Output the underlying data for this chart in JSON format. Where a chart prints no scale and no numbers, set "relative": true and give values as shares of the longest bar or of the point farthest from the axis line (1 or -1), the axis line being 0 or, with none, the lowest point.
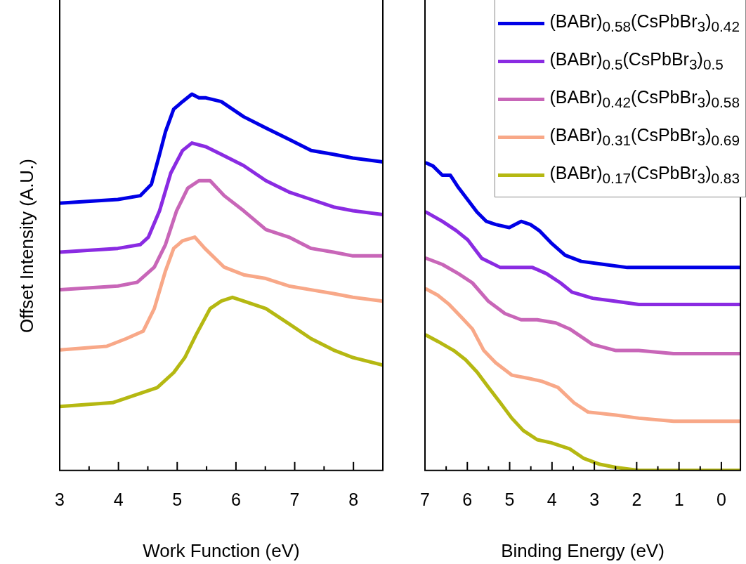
{
  "chart_data": [
    {
      "type": "line",
      "ylabel": "Offset Intensity (A.U.)",
      "xlabel": "Work Function (eV)",
      "relative": true,
      "tick_labels": "x",
      "xlim": [
        3,
        8.5
      ],
      "xticks": [
        3,
        {
          "value": 3.5,
          "label": null
        },
        4,
        {
          "value": 4.5,
          "label": null
        },
        5,
        {
          "value": 5.5,
          "label": null
        },
        6,
        {
          "value": 6.5,
          "label": null
        },
        7,
        {
          "value": 7.5,
          "label": null
        },
        8
      ],
      "line_style": "solid",
      "marker": "none",
      "series": [
        {
          "color": "#0000e6",
          "x": [
            3,
            3.99,
            4.37,
            4.56,
            4.7,
            4.8,
            4.94,
            5.09,
            5.25,
            5.37,
            5.49,
            5.75,
            6.13,
            6.51,
            6.9,
            7.28,
            7.66,
            7.99,
            8.5
          ],
          "values": [
            0.71,
            0.72,
            0.73,
            0.76,
            0.84,
            0.9,
            0.96,
            0.98,
            1.0,
            0.99,
            0.99,
            0.98,
            0.94,
            0.91,
            0.88,
            0.85,
            0.84,
            0.83,
            0.82
          ]
        },
        {
          "color": "#8a2be2",
          "x": [
            3,
            3.99,
            4.37,
            4.51,
            4.7,
            4.89,
            5.09,
            5.25,
            5.49,
            5.75,
            6.13,
            6.51,
            6.9,
            7.28,
            7.66,
            7.99,
            8.5
          ],
          "values": [
            0.58,
            0.59,
            0.6,
            0.62,
            0.69,
            0.79,
            0.85,
            0.87,
            0.86,
            0.84,
            0.81,
            0.77,
            0.74,
            0.72,
            0.7,
            0.69,
            0.68
          ]
        },
        {
          "color": "#c866b8",
          "x": [
            3,
            3.99,
            4.32,
            4.61,
            4.8,
            4.99,
            5.18,
            5.37,
            5.56,
            5.8,
            6.13,
            6.51,
            6.9,
            7.28,
            7.66,
            7.99,
            8.5
          ],
          "values": [
            0.48,
            0.49,
            0.5,
            0.54,
            0.6,
            0.69,
            0.75,
            0.77,
            0.77,
            0.73,
            0.69,
            0.64,
            0.62,
            0.59,
            0.58,
            0.57,
            0.57
          ]
        },
        {
          "color": "#f8a888",
          "x": [
            3,
            3.8,
            4.13,
            4.42,
            4.61,
            4.8,
            4.94,
            5.09,
            5.3,
            5.47,
            5.8,
            6.13,
            6.51,
            6.9,
            7.28,
            7.66,
            7.99,
            8.5
          ],
          "values": [
            0.32,
            0.33,
            0.35,
            0.37,
            0.43,
            0.53,
            0.59,
            0.61,
            0.62,
            0.59,
            0.54,
            0.52,
            0.51,
            0.49,
            0.48,
            0.47,
            0.46,
            0.45
          ]
        },
        {
          "color": "#b5b812",
          "x": [
            3,
            3.9,
            4.28,
            4.66,
            4.94,
            5.13,
            5.32,
            5.56,
            5.75,
            5.94,
            6.13,
            6.51,
            6.9,
            7.28,
            7.66,
            7.99,
            8.5
          ],
          "values": [
            0.17,
            0.18,
            0.2,
            0.22,
            0.26,
            0.3,
            0.36,
            0.43,
            0.45,
            0.46,
            0.45,
            0.43,
            0.39,
            0.35,
            0.32,
            0.3,
            0.28
          ]
        }
      ]
    },
    {
      "type": "line",
      "xlabel": "Binding Energy (eV)",
      "relative": true,
      "tick_labels": "x",
      "legend": "top right",
      "xlim": [
        7,
        -0.45
      ],
      "xticks": [
        7,
        {
          "value": 6.5,
          "label": null
        },
        6,
        {
          "value": 5.5,
          "label": null
        },
        5,
        {
          "value": 4.5,
          "label": null
        },
        4,
        {
          "value": 3.5,
          "label": null
        },
        3,
        {
          "value": 2.5,
          "label": null
        },
        2,
        {
          "value": 1.5,
          "label": null
        },
        1,
        {
          "value": 0.5,
          "label": null
        },
        0
      ],
      "line_style": "solid",
      "marker": "none",
      "series": [
        {
          "name": "(BABr)$_{0.58}$(CsPbBr$_{3}$)$_{0.42}$",
          "color": "#0000e6",
          "x": [
            6.97,
            6.81,
            6.59,
            6.4,
            6.21,
            5.99,
            5.77,
            5.55,
            5.33,
            5.01,
            4.73,
            4.51,
            4.3,
            4.02,
            3.69,
            3.31,
            2.77,
            2.22,
            1.4,
            -0.45
          ],
          "values": [
            1.0,
            0.99,
            0.96,
            0.96,
            0.92,
            0.88,
            0.84,
            0.81,
            0.8,
            0.79,
            0.81,
            0.8,
            0.78,
            0.74,
            0.7,
            0.68,
            0.67,
            0.66,
            0.66,
            0.66
          ]
        },
        {
          "name": "(BABr)$_{0.5}$(CsPbBr$_{3}$)$_{0.5}$",
          "color": "#8a2be2",
          "x": [
            6.97,
            6.59,
            6.26,
            5.99,
            5.66,
            5.22,
            4.79,
            4.46,
            4.13,
            3.8,
            3.53,
            3.04,
            2.49,
            1.95,
            1.4,
            -0.45
          ],
          "values": [
            0.84,
            0.81,
            0.78,
            0.75,
            0.69,
            0.66,
            0.66,
            0.66,
            0.64,
            0.61,
            0.58,
            0.56,
            0.55,
            0.54,
            0.54,
            0.54
          ]
        },
        {
          "name": "(BABr)$_{0.42}$(CsPbBr$_{3}$)$_{0.58}$",
          "color": "#c866b8",
          "x": [
            6.97,
            6.59,
            6.21,
            5.88,
            5.5,
            5.11,
            4.73,
            4.35,
            3.91,
            3.58,
            3.04,
            2.49,
            1.95,
            1.13,
            -0.45
          ],
          "values": [
            0.69,
            0.67,
            0.64,
            0.61,
            0.55,
            0.51,
            0.49,
            0.49,
            0.48,
            0.46,
            0.41,
            0.39,
            0.39,
            0.38,
            0.38
          ]
        },
        {
          "name": "(BABr)$_{0.31}$(CsPbBr$_{3}$)$_{0.69}$",
          "color": "#f8a888",
          "x": [
            6.97,
            6.7,
            6.43,
            6.15,
            5.88,
            5.61,
            5.33,
            4.95,
            4.57,
            4.24,
            3.86,
            3.48,
            3.15,
            2.49,
            1.95,
            1.13,
            -0.45
          ],
          "values": [
            0.59,
            0.57,
            0.54,
            0.5,
            0.46,
            0.39,
            0.35,
            0.31,
            0.3,
            0.29,
            0.27,
            0.22,
            0.19,
            0.18,
            0.17,
            0.16,
            0.16
          ]
        },
        {
          "name": "(BABr)$_{0.17}$(CsPbBr$_{3}$)$_{0.83}$",
          "color": "#b5b812",
          "x": [
            6.97,
            6.7,
            6.32,
            6.04,
            5.77,
            5.5,
            5.22,
            4.95,
            4.68,
            4.35,
            4.02,
            3.58,
            3.26,
            2.87,
            2.49,
            1.95,
            -0.45
          ],
          "values": [
            0.44,
            0.42,
            0.39,
            0.36,
            0.32,
            0.27,
            0.22,
            0.17,
            0.13,
            0.1,
            0.09,
            0.07,
            0.04,
            0.02,
            0.01,
            0.0,
            0.0
          ]
        }
      ]
    }
  ]
}
